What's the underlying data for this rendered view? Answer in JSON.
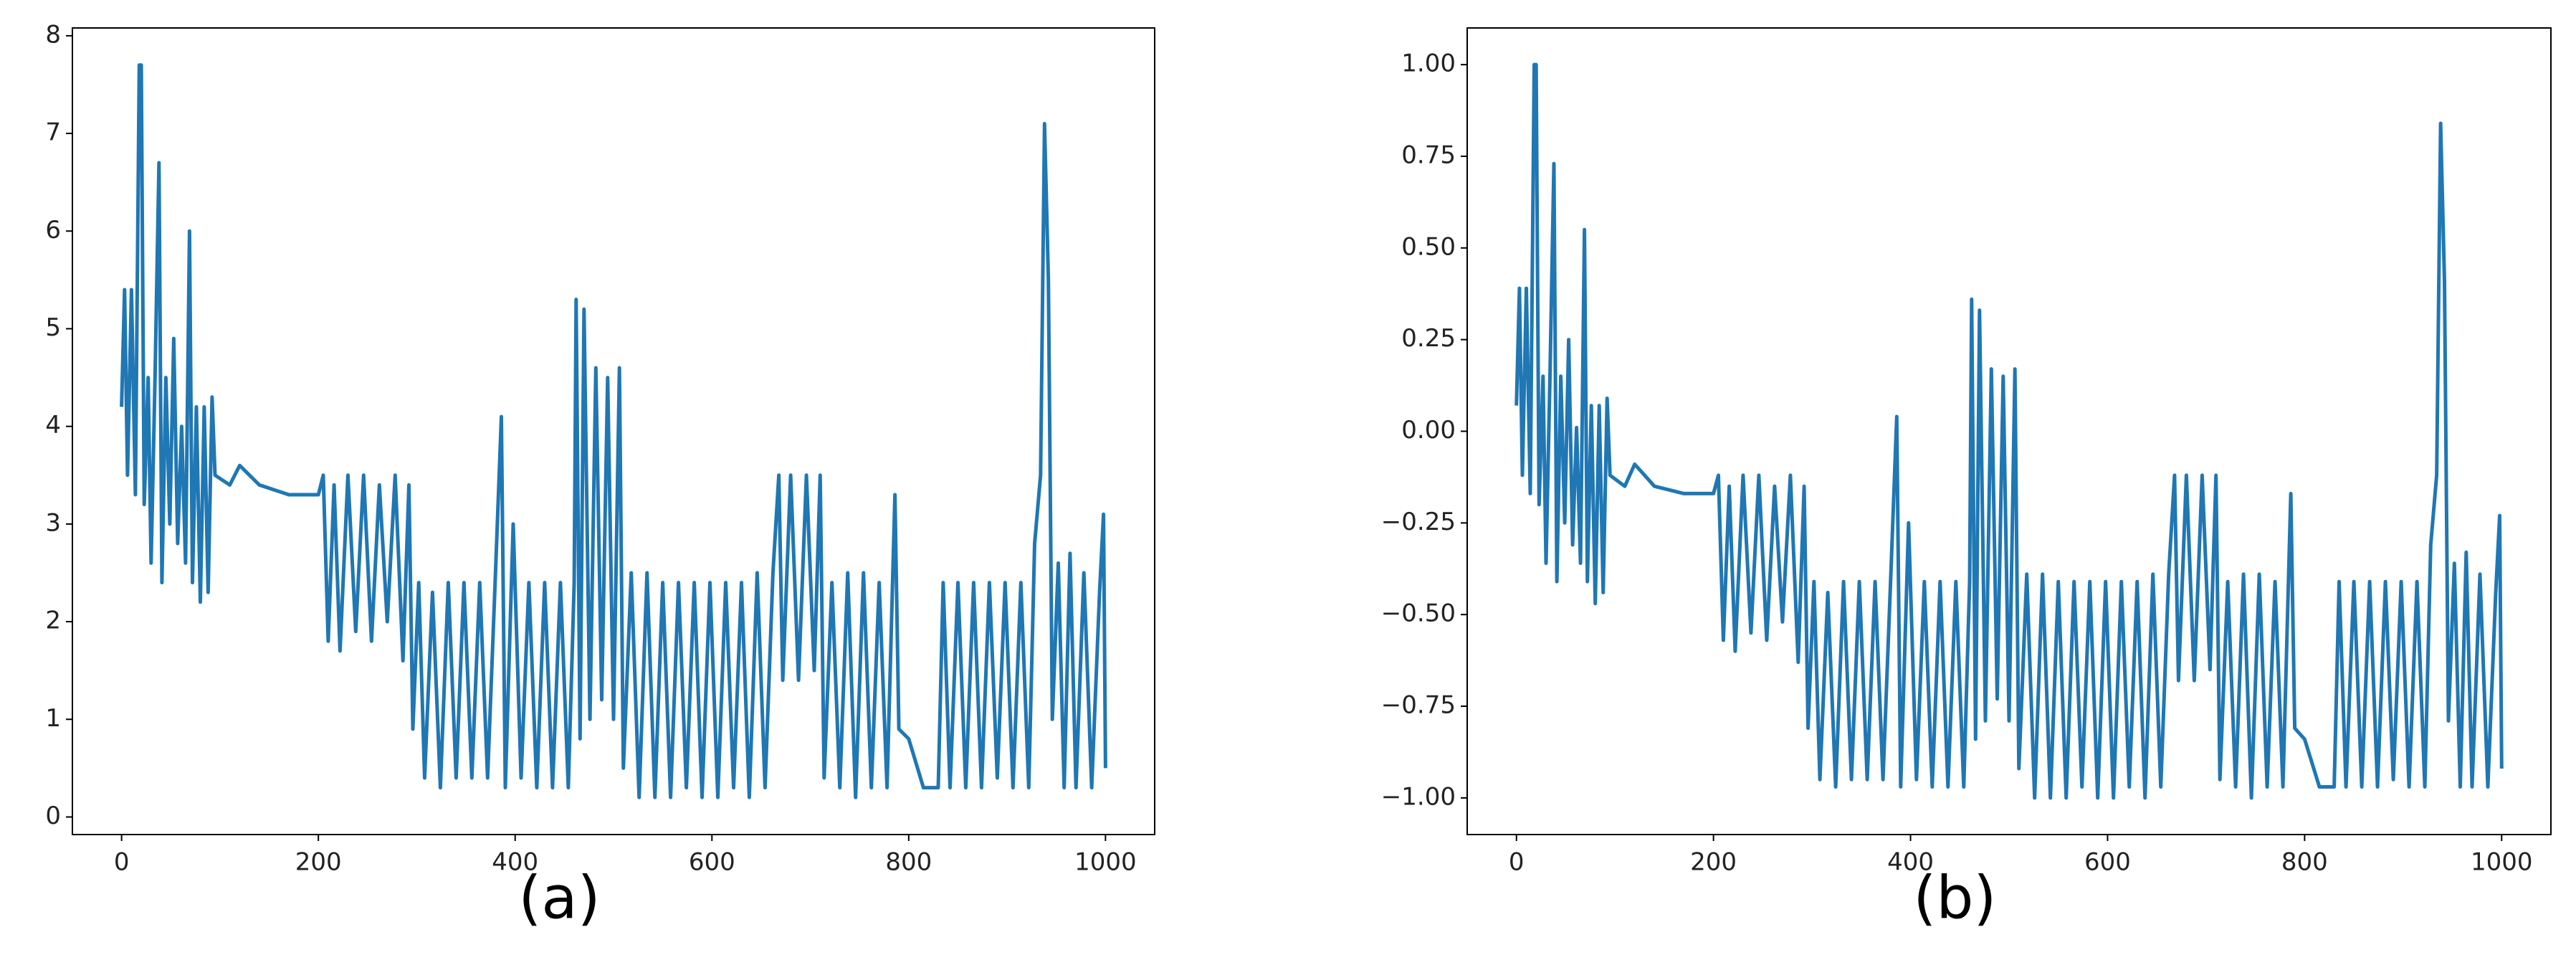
{
  "chart_data": [
    {
      "type": "line",
      "label": "(a)",
      "x": [
        0,
        3,
        6,
        10,
        14,
        18,
        20,
        23,
        27,
        30,
        34,
        38,
        41,
        45,
        49,
        53,
        57,
        61,
        65,
        69,
        72,
        76,
        80,
        84,
        88,
        92,
        95,
        110,
        120,
        140,
        170,
        200,
        205,
        210,
        216,
        222,
        230,
        238,
        246,
        254,
        262,
        270,
        278,
        286,
        292,
        296,
        302,
        308,
        316,
        324,
        332,
        340,
        348,
        356,
        364,
        372,
        380,
        386,
        390,
        398,
        406,
        414,
        422,
        430,
        438,
        446,
        454,
        460,
        462,
        466,
        470,
        476,
        482,
        488,
        494,
        500,
        506,
        510,
        518,
        526,
        534,
        542,
        550,
        558,
        566,
        574,
        582,
        590,
        598,
        606,
        614,
        622,
        630,
        638,
        646,
        654,
        662,
        668,
        672,
        680,
        688,
        696,
        704,
        710,
        714,
        722,
        730,
        738,
        746,
        754,
        762,
        770,
        778,
        786,
        790,
        800,
        815,
        830,
        835,
        842,
        850,
        858,
        866,
        874,
        882,
        890,
        898,
        906,
        914,
        922,
        928,
        934,
        938,
        942,
        946,
        952,
        958,
        964,
        970,
        978,
        986,
        994,
        998,
        1000
      ],
      "series": [
        {
          "color": "#1f77b4",
          "values": [
            4.2,
            5.4,
            3.5,
            5.4,
            3.3,
            7.7,
            7.7,
            3.2,
            4.5,
            2.6,
            4.5,
            6.7,
            2.4,
            4.5,
            3.0,
            4.9,
            2.8,
            4.0,
            2.6,
            6.0,
            2.4,
            4.2,
            2.2,
            4.2,
            2.3,
            4.3,
            3.5,
            3.4,
            3.6,
            3.4,
            3.3,
            3.3,
            3.5,
            1.8,
            3.4,
            1.7,
            3.5,
            1.9,
            3.5,
            1.8,
            3.4,
            2.0,
            3.5,
            1.6,
            3.4,
            0.9,
            2.4,
            0.4,
            2.3,
            0.3,
            2.4,
            0.4,
            2.4,
            0.4,
            2.4,
            0.4,
            2.5,
            4.1,
            0.3,
            3.0,
            0.4,
            2.4,
            0.3,
            2.4,
            0.3,
            2.4,
            0.3,
            2.4,
            5.3,
            0.8,
            5.2,
            1.0,
            4.6,
            1.2,
            4.5,
            1.0,
            4.6,
            0.5,
            2.5,
            0.2,
            2.5,
            0.2,
            2.4,
            0.2,
            2.4,
            0.3,
            2.4,
            0.2,
            2.4,
            0.2,
            2.4,
            0.3,
            2.4,
            0.2,
            2.5,
            0.3,
            2.5,
            3.5,
            1.4,
            3.5,
            1.4,
            3.5,
            1.5,
            3.5,
            0.4,
            2.4,
            0.3,
            2.5,
            0.2,
            2.5,
            0.3,
            2.4,
            0.3,
            3.3,
            0.9,
            0.8,
            0.3,
            0.3,
            2.4,
            0.3,
            2.4,
            0.3,
            2.4,
            0.3,
            2.4,
            0.4,
            2.4,
            0.3,
            2.4,
            0.3,
            2.8,
            3.5,
            7.1,
            5.5,
            1.0,
            2.6,
            0.3,
            2.7,
            0.3,
            2.5,
            0.3,
            2.3,
            3.1,
            0.5
          ]
        }
      ],
      "xlim": [
        -50,
        1050
      ],
      "ylim": [
        -0.18,
        8.08
      ],
      "xticks": [
        0,
        200,
        400,
        600,
        800,
        1000
      ],
      "yticks": [
        0,
        1,
        2,
        3,
        4,
        5,
        6,
        7,
        8
      ]
    },
    {
      "type": "line",
      "label": "(b)",
      "x": [
        0,
        3,
        6,
        10,
        14,
        18,
        20,
        23,
        27,
        30,
        34,
        38,
        41,
        45,
        49,
        53,
        57,
        61,
        65,
        69,
        72,
        76,
        80,
        84,
        88,
        92,
        95,
        110,
        120,
        140,
        170,
        200,
        205,
        210,
        216,
        222,
        230,
        238,
        246,
        254,
        262,
        270,
        278,
        286,
        292,
        296,
        302,
        308,
        316,
        324,
        332,
        340,
        348,
        356,
        364,
        372,
        380,
        386,
        390,
        398,
        406,
        414,
        422,
        430,
        438,
        446,
        454,
        460,
        462,
        466,
        470,
        476,
        482,
        488,
        494,
        500,
        506,
        510,
        518,
        526,
        534,
        542,
        550,
        558,
        566,
        574,
        582,
        590,
        598,
        606,
        614,
        622,
        630,
        638,
        646,
        654,
        662,
        668,
        672,
        680,
        688,
        696,
        704,
        710,
        714,
        722,
        730,
        738,
        746,
        754,
        762,
        770,
        778,
        786,
        790,
        800,
        815,
        830,
        835,
        842,
        850,
        858,
        866,
        874,
        882,
        890,
        898,
        906,
        914,
        922,
        928,
        934,
        938,
        942,
        946,
        952,
        958,
        964,
        970,
        978,
        986,
        994,
        998,
        1000
      ],
      "series": [
        {
          "color": "#1f77b4",
          "values": [
            0.07,
            0.39,
            -0.12,
            0.39,
            -0.17,
            1.0,
            1.0,
            -0.2,
            0.15,
            -0.36,
            0.15,
            0.73,
            -0.41,
            0.15,
            -0.25,
            0.25,
            -0.31,
            0.01,
            -0.36,
            0.55,
            -0.41,
            0.07,
            -0.47,
            0.07,
            -0.44,
            0.09,
            -0.12,
            -0.15,
            -0.09,
            -0.15,
            -0.17,
            -0.17,
            -0.12,
            -0.57,
            -0.15,
            -0.6,
            -0.12,
            -0.55,
            -0.12,
            -0.57,
            -0.15,
            -0.52,
            -0.12,
            -0.63,
            -0.15,
            -0.81,
            -0.41,
            -0.95,
            -0.44,
            -0.97,
            -0.41,
            -0.95,
            -0.41,
            -0.95,
            -0.41,
            -0.95,
            -0.39,
            0.04,
            -0.97,
            -0.25,
            -0.95,
            -0.41,
            -0.97,
            -0.41,
            -0.97,
            -0.41,
            -0.97,
            -0.41,
            0.36,
            -0.84,
            0.33,
            -0.79,
            0.17,
            -0.73,
            0.15,
            -0.79,
            0.17,
            -0.92,
            -0.39,
            -1.0,
            -0.39,
            -1.0,
            -0.41,
            -1.0,
            -0.41,
            -0.97,
            -0.41,
            -1.0,
            -0.41,
            -1.0,
            -0.41,
            -0.97,
            -0.41,
            -1.0,
            -0.39,
            -0.97,
            -0.39,
            -0.12,
            -0.68,
            -0.12,
            -0.68,
            -0.12,
            -0.65,
            -0.12,
            -0.95,
            -0.41,
            -0.97,
            -0.39,
            -1.0,
            -0.39,
            -0.97,
            -0.41,
            -0.97,
            -0.17,
            -0.81,
            -0.84,
            -0.97,
            -0.97,
            -0.41,
            -0.97,
            -0.41,
            -0.97,
            -0.41,
            -0.97,
            -0.41,
            -0.95,
            -0.41,
            -0.97,
            -0.41,
            -0.97,
            -0.31,
            -0.12,
            0.84,
            0.41,
            -0.79,
            -0.36,
            -0.97,
            -0.33,
            -0.97,
            -0.39,
            -0.97,
            -0.44,
            -0.23,
            -0.92
          ]
        }
      ],
      "xlim": [
        -50,
        1050
      ],
      "ylim": [
        -1.1,
        1.1
      ],
      "xticks": [
        0,
        200,
        400,
        600,
        800,
        1000
      ],
      "yticks": [
        {
          "value": -1,
          "label": "−1.00"
        },
        {
          "value": -0.75,
          "label": "−0.75"
        },
        {
          "value": -0.5,
          "label": "−0.50"
        },
        {
          "value": -0.25,
          "label": "−0.25"
        },
        {
          "value": 0,
          "label": "0.00"
        },
        {
          "value": 0.25,
          "label": "0.25"
        },
        {
          "value": 0.5,
          "label": "0.50"
        },
        {
          "value": 0.75,
          "label": "0.75"
        },
        {
          "value": 1,
          "label": "1.00"
        }
      ]
    }
  ]
}
